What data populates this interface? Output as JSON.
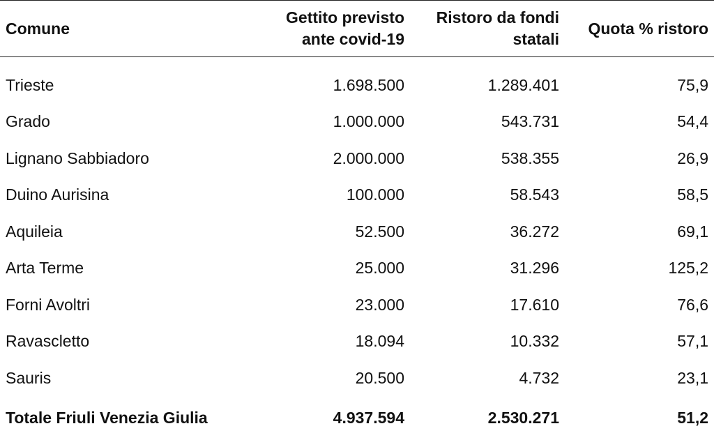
{
  "table": {
    "header": [
      "Comune",
      "Gettito previsto ante covid-19",
      "Ristoro da fondi statali",
      "Quota % ristoro"
    ],
    "rows": [
      [
        "Trieste",
        "1.698.500",
        "1.289.401",
        "75,9"
      ],
      [
        "Grado",
        "1.000.000",
        "543.731",
        "54,4"
      ],
      [
        "Lignano Sabbiadoro",
        "2.000.000",
        "538.355",
        "26,9"
      ],
      [
        "Duino Aurisina",
        "100.000",
        "58.543",
        "58,5"
      ],
      [
        "Aquileia",
        "52.500",
        "36.272",
        "69,1"
      ],
      [
        "Arta Terme",
        "25.000",
        "31.296",
        "125,2"
      ],
      [
        "Forni Avoltri",
        "23.000",
        "17.610",
        "76,6"
      ],
      [
        "Ravascletto",
        "18.094",
        "10.332",
        "57,1"
      ],
      [
        "Sauris",
        "20.500",
        "4.732",
        "23,1"
      ]
    ],
    "total": [
      "Totale Friuli Venezia Giulia",
      "4.937.594",
      "2.530.271",
      "51,2"
    ]
  }
}
